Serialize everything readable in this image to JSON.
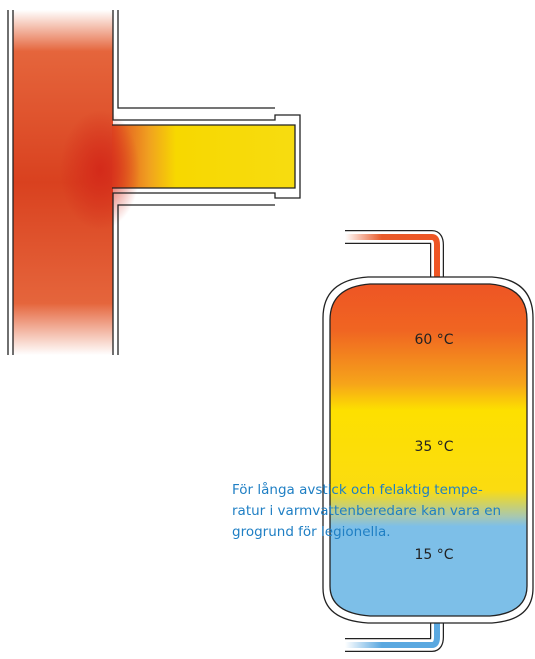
{
  "tank_labels": [
    "60 °C",
    "35 °C",
    "15 °C"
  ],
  "caption": [
    "För långa avstick och felaktig tempe-",
    "ratur i varmvattenberedare kan vara en",
    "grogrund för legionella."
  ]
}
